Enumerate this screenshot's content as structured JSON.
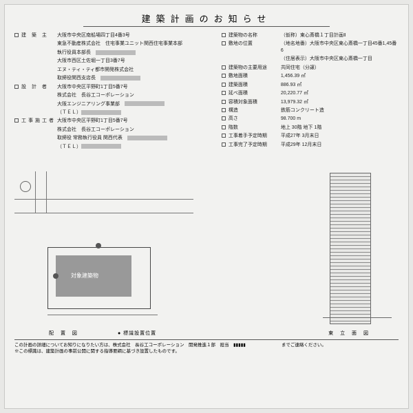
{
  "title": "建築計画のお知らせ",
  "left": [
    {
      "label": "建 築 主",
      "lines": [
        "大阪市中央区南船場四丁目4番3号",
        "東急不動産株式会社　住宅事業ユニット関西住宅事業本部",
        "執行役員本部長　▮▮▮▮▮",
        "大阪市西区土佐堀一丁目3番7号",
        "エヌ・ティ・ティ都市開発株式会社",
        "取締役関西支店長　▮▮▮▮▮"
      ]
    },
    {
      "label": "設 計 者",
      "lines": [
        "大阪市中央区平野町1丁目5番7号",
        "株式会社　長谷工コーポレーション",
        "大阪エンジニアリング事業部　▮▮▮▮▮",
        "（ＴＥＬ）▮▮▮▮▮▮▮"
      ]
    },
    {
      "label": "工事施工者",
      "lines": [
        "大阪市中央区平野町1丁目5番7号",
        "株式会社　長谷工コーポレーション",
        "取締役 常務執行役員 関西代表　▮▮▮▮▮",
        "（ＴＥＬ）▮▮▮▮▮▮▮"
      ]
    }
  ],
  "right": [
    {
      "label": "建築物の名称",
      "value": "（仮称）東心斎橋１丁目計画Ⅱ"
    },
    {
      "label": "敷地の位置",
      "value": "（地名地番）大阪市中央区東心斎橋一丁目45番1,45番6"
    },
    {
      "label": "",
      "value": "（住居表示）大阪市中央区東心斎橋一丁目"
    },
    {
      "label": "建築物の主要用途",
      "value": "共同住宅（分譲）"
    },
    {
      "label": "敷地面積",
      "value": "1,456.39  ㎡"
    },
    {
      "label": "建築面積",
      "value": "886.93  ㎡"
    },
    {
      "label": "延べ面積",
      "value": "20,220.77  ㎡"
    },
    {
      "label": "容積対象面積",
      "value": "13,979.32  ㎡"
    },
    {
      "label": "構造",
      "value": "鉄筋コンクリート造"
    },
    {
      "label": "高さ",
      "value": "98.700  m"
    },
    {
      "label": "階数",
      "value": "地上 30階  地下 1階"
    },
    {
      "label": "工事着手予定時期",
      "value": "平成27年  3月末日"
    },
    {
      "label": "工事完了予定時期",
      "value": "平成29年 12月末日"
    }
  ],
  "plan": {
    "target_label": "対象建築物",
    "caption_left": "配 置 図",
    "caption_mid": "● 標識設置位置"
  },
  "elev": {
    "caption": "東 立 面 図"
  },
  "footer": {
    "l1": "この計画の詳細についてお知りになりたい方は、株式会社　長谷工コーポレーション　開発推進１部　担当　▮▮▮▮▮　　　　　　　　までご連絡ください。",
    "l2": "※この標識は、建築計画の事前公開に関する指導要綱に基づき設置したものです。"
  },
  "colors": {
    "bg": "#e8e8e6",
    "panel": "#f2f2f0",
    "ink": "#222",
    "fill": "#999"
  }
}
